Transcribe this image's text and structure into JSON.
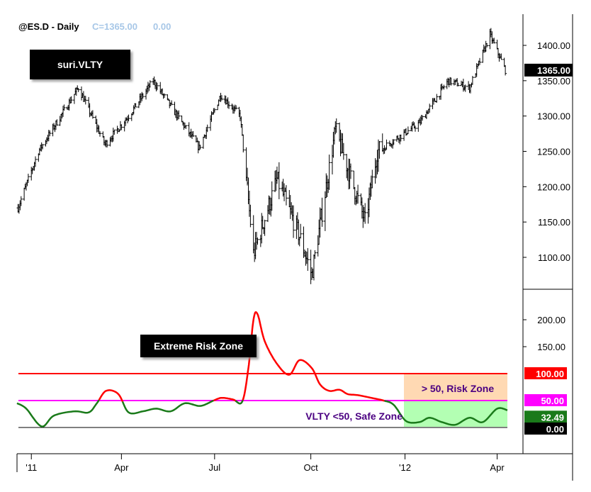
{
  "header": {
    "symbol": "@ES.D - Daily",
    "close_label": "C=1365.00",
    "change": "0.00"
  },
  "badges": {
    "indicator_name": "suri.VLTY",
    "extreme_zone": "Extreme Risk Zone",
    "risk_zone": "> 50, Risk Zone",
    "safe_zone": "VLTY <50, Safe Zone"
  },
  "colors": {
    "price_bar": "#000000",
    "vlty_high": "#ff0000",
    "vlty_low": "#1a7a1a",
    "line_100": "#ff0000",
    "line_50": "#ff00ff",
    "risk_zone_bg": "#ffd9b3",
    "safe_zone_bg": "#b3ffb3",
    "zone_text": "#4b0082"
  },
  "chart_data": [
    {
      "type": "ohlc",
      "title": "@ES.D - Daily",
      "ylim": [
        1050,
        1420
      ],
      "yticks": [
        "1400.00",
        "1350.00",
        "1300.00",
        "1250.00",
        "1200.00",
        "1150.00",
        "1100.00"
      ],
      "last_value_label": "1365.00",
      "x_labels": [
        "'11",
        "Apr",
        "Jul",
        "Oct",
        "'12",
        "Apr"
      ],
      "x_label_dates": [
        "2011-01-03",
        "2011-04-01",
        "2011-07-01",
        "2011-10-03",
        "2012-01-03",
        "2012-04-02"
      ],
      "x_range": [
        "2010-12-20",
        "2012-04-12"
      ],
      "series": {
        "name": "",
        "x": [
          "2010-12-21",
          "2011-01-10",
          "2011-02-18",
          "2011-03-16",
          "2011-04-08",
          "2011-05-02",
          "2011-06-16",
          "2011-07-07",
          "2011-07-26",
          "2011-08-08",
          "2011-08-31",
          "2011-09-22",
          "2011-10-04",
          "2011-10-27",
          "2011-11-25",
          "2011-12-07",
          "2012-01-17",
          "2012-02-14",
          "2012-03-06",
          "2012-03-26",
          "2012-04-10"
        ],
        "values": [
          1170,
          1250,
          1340,
          1260,
          1300,
          1350,
          1255,
          1330,
          1300,
          1105,
          1210,
          1130,
          1075,
          1280,
          1150,
          1250,
          1290,
          1350,
          1340,
          1415,
          1365
        ]
      }
    },
    {
      "type": "line",
      "title": "suri.VLTY",
      "ylim": [
        -20,
        220
      ],
      "yticks": [
        "200.00",
        "150.00"
      ],
      "reference_lines": [
        {
          "value": 100,
          "label": "100.00"
        },
        {
          "value": 50,
          "label": "50.00"
        },
        {
          "value": 0,
          "label": "0.00"
        }
      ],
      "last_value_label": "32.49",
      "series": {
        "name": "",
        "x": [
          "2010-12-20",
          "2010-12-29",
          "2011-01-13",
          "2011-01-25",
          "2011-02-14",
          "2011-02-28",
          "2011-03-08",
          "2011-03-17",
          "2011-03-29",
          "2011-04-08",
          "2011-04-22",
          "2011-05-05",
          "2011-05-19",
          "2011-06-02",
          "2011-06-17",
          "2011-06-30",
          "2011-07-08",
          "2011-07-19",
          "2011-07-28",
          "2011-08-03",
          "2011-08-08",
          "2011-08-12",
          "2011-08-19",
          "2011-08-31",
          "2011-09-12",
          "2011-09-22",
          "2011-10-04",
          "2011-10-12",
          "2011-10-21",
          "2011-10-31",
          "2011-11-08",
          "2011-11-18",
          "2011-12-01",
          "2011-12-13",
          "2011-12-23",
          "2012-01-04",
          "2012-01-17",
          "2012-01-27",
          "2012-02-08",
          "2012-02-21",
          "2012-03-06",
          "2012-03-19",
          "2012-04-02",
          "2012-04-12"
        ],
        "values": [
          45,
          35,
          2,
          22,
          30,
          28,
          45,
          68,
          62,
          28,
          30,
          35,
          30,
          45,
          40,
          50,
          55,
          52,
          48,
          110,
          200,
          210,
          160,
          118,
          98,
          125,
          110,
          80,
          68,
          70,
          62,
          60,
          55,
          50,
          42,
          12,
          10,
          18,
          10,
          5,
          18,
          10,
          35,
          32
        ]
      }
    }
  ]
}
